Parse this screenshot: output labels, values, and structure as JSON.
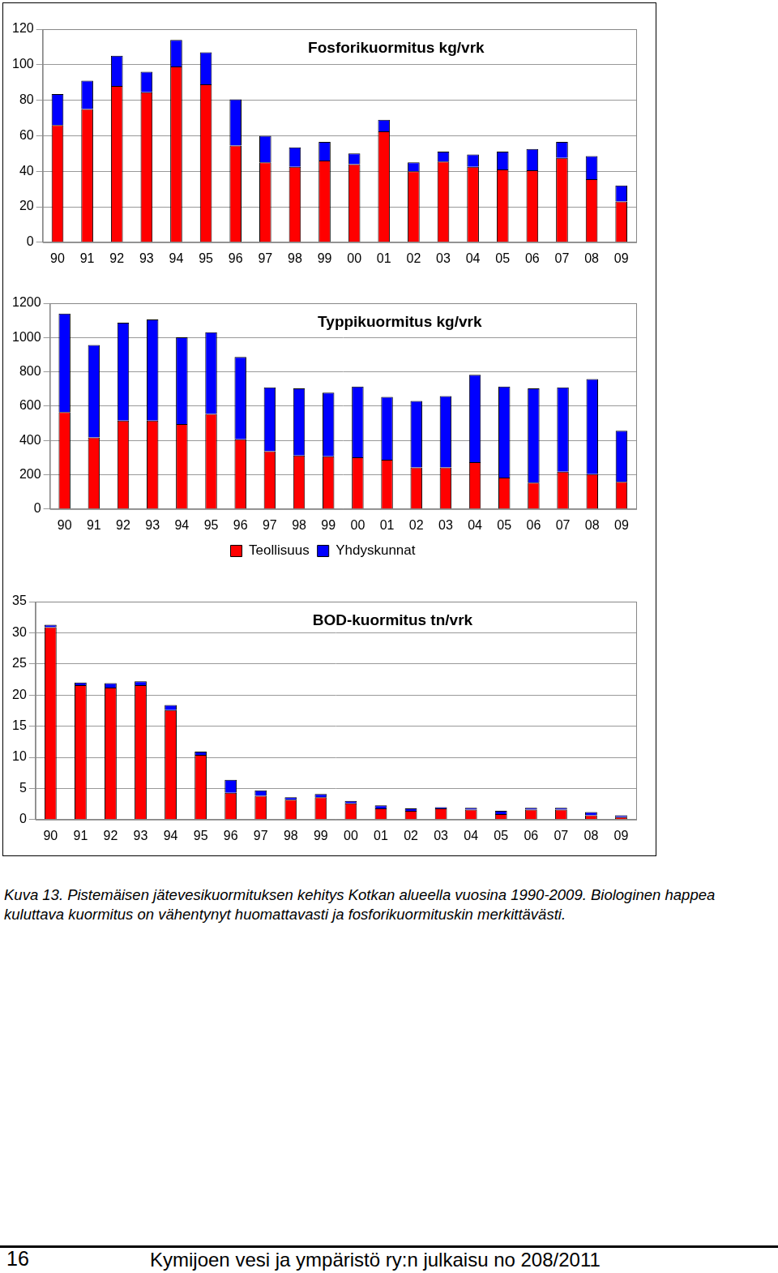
{
  "chart_data": [
    {
      "type": "bar",
      "title": "Fosforikuormitus kg/vrk",
      "categories": [
        "90",
        "91",
        "92",
        "93",
        "94",
        "95",
        "96",
        "97",
        "98",
        "99",
        "00",
        "01",
        "02",
        "03",
        "04",
        "05",
        "06",
        "07",
        "08",
        "09"
      ],
      "series": [
        {
          "name": "Teollisuus",
          "color": "#ff0000",
          "values": [
            66,
            75,
            88,
            84.5,
            99,
            89,
            54.5,
            45,
            42.5,
            46,
            44,
            62.5,
            40,
            45.5,
            42.5,
            41,
            40.5,
            47.5,
            35.5,
            23
          ]
        },
        {
          "name": "Yhdyskunnat",
          "color": "#0000ff",
          "values": [
            17.5,
            16,
            17,
            11.5,
            15,
            18,
            26,
            15,
            11,
            10.5,
            6,
            6.5,
            5,
            5.5,
            7,
            10,
            12,
            9,
            13,
            9
          ]
        }
      ],
      "ylim": [
        0,
        120
      ],
      "yticks": [
        0,
        20,
        40,
        60,
        80,
        100,
        120
      ],
      "grid": true,
      "stacked": true
    },
    {
      "type": "bar",
      "title": "Typpikuormitus kg/vrk",
      "categories": [
        "90",
        "91",
        "92",
        "93",
        "94",
        "95",
        "96",
        "97",
        "98",
        "99",
        "00",
        "01",
        "02",
        "03",
        "04",
        "05",
        "06",
        "07",
        "08",
        "09"
      ],
      "series": [
        {
          "name": "Teollisuus",
          "color": "#ff0000",
          "values": [
            565,
            417,
            516,
            516,
            496,
            555,
            407,
            337,
            312,
            307,
            302,
            288,
            243,
            243,
            273,
            183,
            154,
            218,
            203,
            159
          ]
        },
        {
          "name": "Yhdyskunnat",
          "color": "#0000ff",
          "values": [
            575,
            540,
            570,
            590,
            505,
            476,
            480,
            372,
            392,
            372,
            412,
            366,
            387,
            416,
            510,
            531,
            550,
            491,
            555,
            297
          ]
        }
      ],
      "ylim": [
        0,
        1200
      ],
      "yticks": [
        0,
        200,
        400,
        600,
        800,
        1000,
        1200
      ],
      "grid": true,
      "stacked": true,
      "legend": "bottom"
    },
    {
      "type": "bar",
      "title": "BOD-kuormitus tn/vrk",
      "categories": [
        "90",
        "91",
        "92",
        "93",
        "94",
        "95",
        "96",
        "97",
        "98",
        "99",
        "00",
        "01",
        "02",
        "03",
        "04",
        "05",
        "06",
        "07",
        "08",
        "09"
      ],
      "series": [
        {
          "name": "Teollisuus",
          "color": "#ff0000",
          "values": [
            30.9,
            21.6,
            21.2,
            21.6,
            17.6,
            10.4,
            4.3,
            3.8,
            3.2,
            3.6,
            2.6,
            1.8,
            1.4,
            1.8,
            1.6,
            0.9,
            1.6,
            1.6,
            0.7,
            0.4
          ]
        },
        {
          "name": "Yhdyskunnat",
          "color": "#0000ff",
          "values": [
            0.4,
            0.4,
            0.7,
            0.6,
            0.8,
            0.5,
            2.1,
            0.9,
            0.4,
            0.5,
            0.4,
            0.5,
            0.4,
            0.2,
            0.3,
            0.5,
            0.3,
            0.3,
            0.5,
            0.3
          ]
        }
      ],
      "ylim": [
        0,
        35
      ],
      "yticks": [
        0,
        5,
        10,
        15,
        20,
        25,
        30,
        35
      ],
      "grid": true,
      "stacked": true
    }
  ],
  "caption": "Kuva 13. Pistemäisen jätevesikuormituksen kehitys Kotkan alueella vuosina 1990-2009. Biologinen happea kuluttava kuormitus on vähentynyt huomattavasti ja fosforikuormituskin merkittävästi.",
  "footer": {
    "page_number": 16,
    "text": "Kymijoen vesi ja ympäristö ry:n julkaisu no 208/2011"
  }
}
